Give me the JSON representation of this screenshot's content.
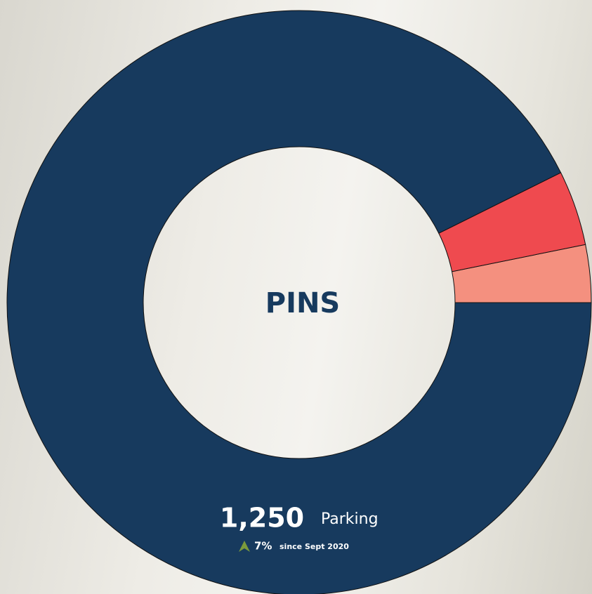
{
  "chart_data": {
    "type": "donut",
    "title": "PINS",
    "categories": [
      null,
      null,
      "Parking"
    ],
    "values": [
      43,
      56,
      1250
    ],
    "value_labels": [
      null,
      null,
      "1,250"
    ],
    "colors": [
      "#f4907f",
      "#ef4a4f",
      "#173a5e"
    ],
    "change": "7%",
    "change_note": "since Sept 2020"
  }
}
